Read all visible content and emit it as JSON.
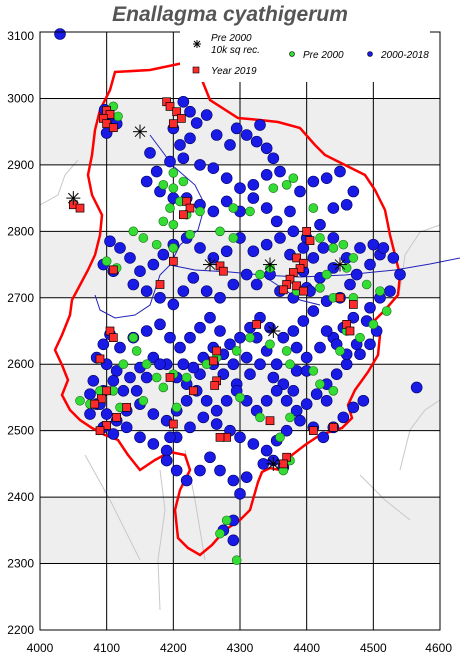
{
  "title": "Enallagma cyathigerum",
  "map": {
    "x_axis": {
      "min": 4000,
      "max": 4600,
      "ticks": [
        4000,
        4100,
        4200,
        4300,
        4400,
        4500,
        4600
      ]
    },
    "y_axis": {
      "min": 2200,
      "max": 3100,
      "ticks": [
        2200,
        2300,
        2400,
        2500,
        2600,
        2700,
        2800,
        2900,
        3000,
        3100
      ]
    },
    "shaded_bands": [
      [
        2300,
        2400
      ],
      [
        2500,
        2600
      ],
      [
        2700,
        2800
      ],
      [
        2900,
        3000
      ]
    ],
    "colors": {
      "boundary": "#ff0000",
      "river": "#2222bb",
      "grid": "#000000",
      "band": "#eeeeee",
      "pre2000_10k": "#000000",
      "pre2000": "#33dd33",
      "recent": "#1a1ae6",
      "year2019": "#ff2a2a"
    }
  },
  "legend": {
    "pre2000_10k": "Pre 2000\n10k sq rec.",
    "pre2000": "Pre 2000",
    "recent": "2000-2018",
    "year2019": "Year 2019"
  },
  "records": {
    "recent": [
      [
        4030,
        3097
      ],
      [
        4097,
        2983
      ],
      [
        4105,
        2968
      ],
      [
        4115,
        2962
      ],
      [
        4100,
        2948
      ],
      [
        4165,
        2918
      ],
      [
        4200,
        2955
      ],
      [
        4215,
        2995
      ],
      [
        4225,
        2980
      ],
      [
        4235,
        2963
      ],
      [
        4250,
        2975
      ],
      [
        4265,
        2945
      ],
      [
        4285,
        2930
      ],
      [
        4295,
        2955
      ],
      [
        4310,
        2945
      ],
      [
        4325,
        2935
      ],
      [
        4330,
        2960
      ],
      [
        4340,
        2925
      ],
      [
        4350,
        2910
      ],
      [
        4360,
        2890
      ],
      [
        4340,
        2885
      ],
      [
        4320,
        2870
      ],
      [
        4300,
        2865
      ],
      [
        4280,
        2880
      ],
      [
        4260,
        2895
      ],
      [
        4240,
        2900
      ],
      [
        4215,
        2910
      ],
      [
        4195,
        2905
      ],
      [
        4175,
        2890
      ],
      [
        4160,
        2875
      ],
      [
        4210,
        2930
      ],
      [
        4225,
        2940
      ],
      [
        4180,
        2860
      ],
      [
        4200,
        2850
      ],
      [
        4220,
        2850
      ],
      [
        4240,
        2840
      ],
      [
        4260,
        2830
      ],
      [
        4280,
        2845
      ],
      [
        4300,
        2830
      ],
      [
        4320,
        2850
      ],
      [
        4340,
        2835
      ],
      [
        4355,
        2815
      ],
      [
        4375,
        2830
      ],
      [
        4390,
        2860
      ],
      [
        4410,
        2875
      ],
      [
        4430,
        2880
      ],
      [
        4450,
        2890
      ],
      [
        4470,
        2860
      ],
      [
        4460,
        2840
      ],
      [
        4440,
        2835
      ],
      [
        4420,
        2810
      ],
      [
        4400,
        2790
      ],
      [
        4380,
        2800
      ],
      [
        4360,
        2790
      ],
      [
        4340,
        2780
      ],
      [
        4320,
        2770
      ],
      [
        4300,
        2790
      ],
      [
        4280,
        2770
      ],
      [
        4260,
        2760
      ],
      [
        4240,
        2775
      ],
      [
        4220,
        2790
      ],
      [
        4200,
        2780
      ],
      [
        4185,
        2765
      ],
      [
        4170,
        2750
      ],
      [
        4150,
        2740
      ],
      [
        4135,
        2760
      ],
      [
        4120,
        2775
      ],
      [
        4105,
        2785
      ],
      [
        4095,
        2750
      ],
      [
        4110,
        2740
      ],
      [
        4140,
        2720
      ],
      [
        4160,
        2710
      ],
      [
        4180,
        2700
      ],
      [
        4200,
        2690
      ],
      [
        4215,
        2710
      ],
      [
        4230,
        2730
      ],
      [
        4250,
        2710
      ],
      [
        4270,
        2700
      ],
      [
        4290,
        2720
      ],
      [
        4310,
        2735
      ],
      [
        4325,
        2720
      ],
      [
        4345,
        2735
      ],
      [
        4360,
        2710
      ],
      [
        4380,
        2700
      ],
      [
        4400,
        2715
      ],
      [
        4420,
        2730
      ],
      [
        4440,
        2745
      ],
      [
        4460,
        2760
      ],
      [
        4480,
        2775
      ],
      [
        4500,
        2780
      ],
      [
        4510,
        2765
      ],
      [
        4495,
        2750
      ],
      [
        4475,
        2735
      ],
      [
        4465,
        2720
      ],
      [
        4450,
        2700
      ],
      [
        4430,
        2695
      ],
      [
        4410,
        2680
      ],
      [
        4395,
        2665
      ],
      [
        4380,
        2650
      ],
      [
        4365,
        2640
      ],
      [
        4345,
        2655
      ],
      [
        4330,
        2670
      ],
      [
        4315,
        2655
      ],
      [
        4300,
        2640
      ],
      [
        4285,
        2630
      ],
      [
        4270,
        2650
      ],
      [
        4255,
        2670
      ],
      [
        4240,
        2655
      ],
      [
        4225,
        2640
      ],
      [
        4210,
        2625
      ],
      [
        4195,
        2640
      ],
      [
        4180,
        2660
      ],
      [
        4160,
        2650
      ],
      [
        4140,
        2640
      ],
      [
        4120,
        2625
      ],
      [
        4105,
        2645
      ],
      [
        4095,
        2630
      ],
      [
        4085,
        2610
      ],
      [
        4100,
        2600
      ],
      [
        4115,
        2590
      ],
      [
        4135,
        2580
      ],
      [
        4150,
        2595
      ],
      [
        4170,
        2610
      ],
      [
        4190,
        2600
      ],
      [
        4205,
        2580
      ],
      [
        4220,
        2570
      ],
      [
        4240,
        2585
      ],
      [
        4260,
        2600
      ],
      [
        4275,
        2585
      ],
      [
        4295,
        2570
      ],
      [
        4315,
        2585
      ],
      [
        4330,
        2600
      ],
      [
        4350,
        2580
      ],
      [
        4365,
        2570
      ],
      [
        4385,
        2590
      ],
      [
        4400,
        2610
      ],
      [
        4420,
        2625
      ],
      [
        4440,
        2640
      ],
      [
        4455,
        2655
      ],
      [
        4470,
        2670
      ],
      [
        4490,
        2665
      ],
      [
        4505,
        2650
      ],
      [
        4495,
        2630
      ],
      [
        4480,
        2615
      ],
      [
        4460,
        2600
      ],
      [
        4445,
        2585
      ],
      [
        4430,
        2570
      ],
      [
        4415,
        2555
      ],
      [
        4400,
        2540
      ],
      [
        4385,
        2530
      ],
      [
        4370,
        2545
      ],
      [
        4355,
        2560
      ],
      [
        4340,
        2545
      ],
      [
        4325,
        2530
      ],
      [
        4310,
        2545
      ],
      [
        4295,
        2560
      ],
      [
        4280,
        2545
      ],
      [
        4265,
        2530
      ],
      [
        4250,
        2545
      ],
      [
        4235,
        2560
      ],
      [
        4220,
        2545
      ],
      [
        4205,
        2530
      ],
      [
        4190,
        2515
      ],
      [
        4170,
        2525
      ],
      [
        4150,
        2540
      ],
      [
        4130,
        2530
      ],
      [
        4115,
        2515
      ],
      [
        4100,
        2525
      ],
      [
        4085,
        2540
      ],
      [
        4075,
        2525
      ],
      [
        4095,
        2505
      ],
      [
        4110,
        2495
      ],
      [
        4130,
        2505
      ],
      [
        4150,
        2490
      ],
      [
        4170,
        2480
      ],
      [
        4190,
        2470
      ],
      [
        4205,
        2490
      ],
      [
        4225,
        2505
      ],
      [
        4245,
        2520
      ],
      [
        4265,
        2510
      ],
      [
        4285,
        2500
      ],
      [
        4300,
        2490
      ],
      [
        4320,
        2480
      ],
      [
        4340,
        2470
      ],
      [
        4355,
        2485
      ],
      [
        4370,
        2500
      ],
      [
        4390,
        2515
      ],
      [
        4410,
        2505
      ],
      [
        4425,
        2490
      ],
      [
        4440,
        2505
      ],
      [
        4455,
        2520
      ],
      [
        4470,
        2535
      ],
      [
        4485,
        2545
      ],
      [
        4430,
        2545
      ],
      [
        4350,
        2455
      ],
      [
        4365,
        2445
      ],
      [
        4335,
        2450
      ],
      [
        4310,
        2430
      ],
      [
        4290,
        2425
      ],
      [
        4270,
        2440
      ],
      [
        4255,
        2460
      ],
      [
        4240,
        2440
      ],
      [
        4220,
        2425
      ],
      [
        4205,
        2440
      ],
      [
        4190,
        2455
      ],
      [
        4195,
        2490
      ],
      [
        4300,
        2405
      ],
      [
        4290,
        2365
      ],
      [
        4290,
        2335
      ],
      [
        4275,
        2350
      ],
      [
        4565,
        2565
      ],
      [
        4540,
        2735
      ],
      [
        4530,
        2760
      ],
      [
        4515,
        2775
      ],
      [
        4525,
        2710
      ],
      [
        4510,
        2700
      ],
      [
        4495,
        2685
      ],
      [
        4410,
        2760
      ],
      [
        4425,
        2775
      ],
      [
        4440,
        2790
      ],
      [
        4395,
        2740
      ],
      [
        4375,
        2765
      ],
      [
        4395,
        2775
      ],
      [
        4405,
        2710
      ],
      [
        4430,
        2650
      ],
      [
        4445,
        2630
      ],
      [
        4460,
        2615
      ],
      [
        4475,
        2630
      ],
      [
        4385,
        2625
      ],
      [
        4400,
        2590
      ],
      [
        4380,
        2560
      ],
      [
        4355,
        2600
      ],
      [
        4340,
        2620
      ],
      [
        4325,
        2640
      ],
      [
        4310,
        2610
      ],
      [
        4290,
        2600
      ],
      [
        4275,
        2615
      ],
      [
        4260,
        2625
      ],
      [
        4245,
        2610
      ],
      [
        4230,
        2595
      ],
      [
        4215,
        2600
      ],
      [
        4180,
        2600
      ],
      [
        4160,
        2580
      ],
      [
        4145,
        2560
      ],
      [
        4125,
        2560
      ],
      [
        4110,
        2575
      ],
      [
        4095,
        2560
      ],
      [
        4080,
        2575
      ],
      [
        4075,
        2555
      ],
      [
        4090,
        2540
      ]
    ],
    "pre2000": [
      [
        4110,
        2988
      ],
      [
        4117,
        2973
      ],
      [
        4200,
        2888
      ],
      [
        4185,
        2870
      ],
      [
        4200,
        2865
      ],
      [
        4215,
        2875
      ],
      [
        4210,
        2845
      ],
      [
        4195,
        2835
      ],
      [
        4185,
        2815
      ],
      [
        4200,
        2810
      ],
      [
        4220,
        2825
      ],
      [
        4240,
        2830
      ],
      [
        4290,
        2835
      ],
      [
        4315,
        2830
      ],
      [
        4350,
        2865
      ],
      [
        4370,
        2870
      ],
      [
        4380,
        2880
      ],
      [
        4410,
        2835
      ],
      [
        4420,
        2790
      ],
      [
        4440,
        2775
      ],
      [
        4455,
        2780
      ],
      [
        4460,
        2745
      ],
      [
        4470,
        2760
      ],
      [
        4420,
        2715
      ],
      [
        4385,
        2710
      ],
      [
        4345,
        2745
      ],
      [
        4330,
        2735
      ],
      [
        4290,
        2790
      ],
      [
        4270,
        2800
      ],
      [
        4225,
        2795
      ],
      [
        4200,
        2775
      ],
      [
        4175,
        2780
      ],
      [
        4155,
        2790
      ],
      [
        4140,
        2800
      ],
      [
        4115,
        2745
      ],
      [
        4100,
        2755
      ],
      [
        4140,
        2640
      ],
      [
        4125,
        2600
      ],
      [
        4110,
        2560
      ],
      [
        4090,
        2560
      ],
      [
        4060,
        2545
      ],
      [
        4075,
        2540
      ],
      [
        4120,
        2535
      ],
      [
        4155,
        2545
      ],
      [
        4175,
        2580
      ],
      [
        4200,
        2585
      ],
      [
        4220,
        2580
      ],
      [
        4250,
        2600
      ],
      [
        4265,
        2610
      ],
      [
        4295,
        2620
      ],
      [
        4315,
        2640
      ],
      [
        4345,
        2630
      ],
      [
        4370,
        2620
      ],
      [
        4375,
        2600
      ],
      [
        4410,
        2590
      ],
      [
        4420,
        2570
      ],
      [
        4440,
        2560
      ],
      [
        4450,
        2620
      ],
      [
        4460,
        2650
      ],
      [
        4470,
        2700
      ],
      [
        4490,
        2720
      ],
      [
        4510,
        2710
      ],
      [
        4520,
        2680
      ],
      [
        4500,
        2660
      ],
      [
        4480,
        2640
      ],
      [
        4440,
        2700
      ],
      [
        4430,
        2735
      ],
      [
        4375,
        2520
      ],
      [
        4360,
        2490
      ],
      [
        4375,
        2455
      ],
      [
        4365,
        2440
      ],
      [
        4280,
        2365
      ],
      [
        4270,
        2345
      ],
      [
        4295,
        2305
      ],
      [
        4205,
        2535
      ],
      [
        4185,
        2565
      ],
      [
        4160,
        2600
      ],
      [
        4145,
        2620
      ],
      [
        4330,
        2520
      ],
      [
        4300,
        2550
      ]
    ],
    "year2019": [
      [
        4100,
        2982
      ],
      [
        4105,
        2976
      ],
      [
        4095,
        2970
      ],
      [
        4100,
        2962
      ],
      [
        4110,
        2956
      ],
      [
        4190,
        2995
      ],
      [
        4195,
        2988
      ],
      [
        4205,
        2980
      ],
      [
        4212,
        2970
      ],
      [
        4200,
        2962
      ],
      [
        4220,
        2845
      ],
      [
        4225,
        2835
      ],
      [
        4215,
        2825
      ],
      [
        4050,
        2840
      ],
      [
        4060,
        2835
      ],
      [
        4385,
        2760
      ],
      [
        4395,
        2752
      ],
      [
        4390,
        2744
      ],
      [
        4380,
        2738
      ],
      [
        4375,
        2728
      ],
      [
        4385,
        2718
      ],
      [
        4395,
        2710
      ],
      [
        4400,
        2800
      ],
      [
        4405,
        2786
      ],
      [
        4370,
        2720
      ],
      [
        4365,
        2712
      ],
      [
        4110,
        2742
      ],
      [
        4200,
        2755
      ],
      [
        4270,
        2748
      ],
      [
        4275,
        2740
      ],
      [
        4180,
        2720
      ],
      [
        4325,
        2660
      ],
      [
        4450,
        2700
      ],
      [
        4470,
        2690
      ],
      [
        4460,
        2660
      ],
      [
        4465,
        2650
      ],
      [
        4105,
        2650
      ],
      [
        4110,
        2640
      ],
      [
        4090,
        2608
      ],
      [
        4100,
        2560
      ],
      [
        4092,
        2548
      ],
      [
        4082,
        2540
      ],
      [
        4130,
        2535
      ],
      [
        4115,
        2520
      ],
      [
        4100,
        2508
      ],
      [
        4090,
        2500
      ],
      [
        4265,
        2620
      ],
      [
        4260,
        2605
      ],
      [
        4265,
        2575
      ],
      [
        4262,
        2568
      ],
      [
        4230,
        2560
      ],
      [
        4200,
        2510
      ],
      [
        4280,
        2490
      ],
      [
        4270,
        2490
      ],
      [
        4345,
        2515
      ],
      [
        4370,
        2460
      ],
      [
        4365,
        2450
      ],
      [
        4410,
        2500
      ],
      [
        4440,
        2505
      ],
      [
        4195,
        2580
      ]
    ],
    "pre2000_10k": [
      [
        4150,
        2950
      ],
      [
        4050,
        2850
      ],
      [
        4255,
        2750
      ],
      [
        4345,
        2750
      ],
      [
        4450,
        2750
      ],
      [
        4350,
        2650
      ],
      [
        4350,
        2450
      ]
    ]
  }
}
